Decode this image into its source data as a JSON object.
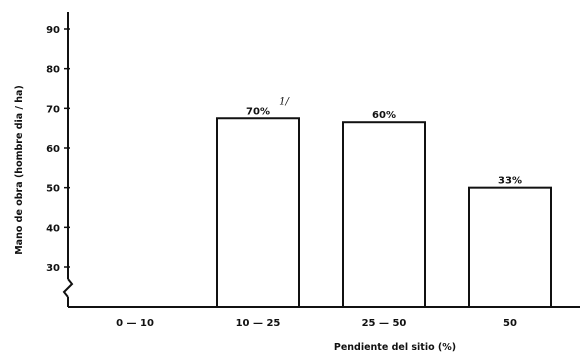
{
  "chart_data": {
    "type": "bar",
    "categories": [
      "0 — 10",
      "10 — 25",
      "25 — 50",
      "50"
    ],
    "values": [
      null,
      67.5,
      66.5,
      50
    ],
    "bar_labels": [
      "",
      "70%",
      "60%",
      "33%"
    ],
    "footnote_mark": "1/",
    "xlabel": "Pendiente del sitio (%)",
    "ylabel": "Mano de obra (hombre dia / ha)",
    "yticks": [
      30,
      40,
      50,
      60,
      70,
      80,
      90
    ],
    "ylim": [
      20,
      95
    ],
    "axis_break": true,
    "grid": false,
    "colors": {
      "bar_fill": "#ffffff",
      "bar_stroke": "#111111",
      "axis": "#111111"
    }
  }
}
